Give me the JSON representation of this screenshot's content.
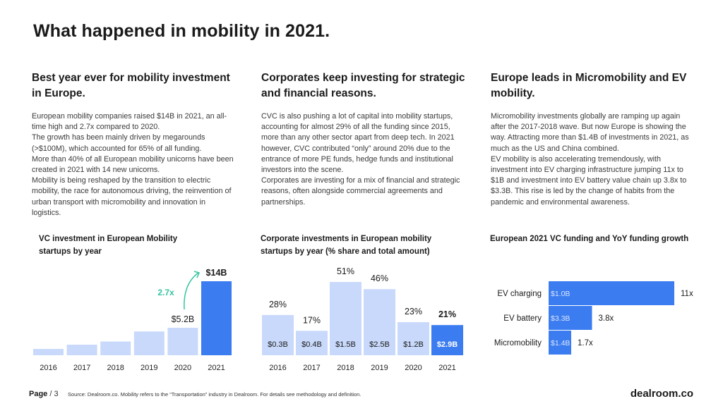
{
  "title": "What happened in mobility in 2021.",
  "columns": [
    {
      "heading": "Best year ever for mobility investment in Europe.",
      "body": [
        "European mobility companies raised $14B in 2021, an all-time high and 2.7x compared to 2020.",
        "The growth has been mainly driven by megarounds (>$100M), which accounted for 65% of all funding.",
        "More than 40% of all European mobility unicorns have been created in 2021 with 14 new unicorns.",
        "Mobility is being reshaped by the transition to electric mobility, the race for autonomous driving, the reinvention of urban transport with micromobility and innovation in logistics."
      ]
    },
    {
      "heading": "Corporates keep investing for strategic and financial reasons.",
      "body": [
        "CVC is also pushing a lot of capital into mobility startups, accounting for almost 29% of all the funding since 2015, more than any other sector apart from deep tech. In 2021 however, CVC contributed “only” around 20% due to the entrance of more PE funds, hedge funds and institutional investors into the scene.",
        "Corporates are investing for a mix of financial and strategic reasons, often alongside commercial agreements and partnerships."
      ]
    },
    {
      "heading": "Europe leads in Micromobility and EV mobility.",
      "body": [
        "Micromobility investments globally are ramping up again after the 2017-2018 wave. But now Europe is showing the way. Attracting more than $1.4B of investments in 2021, as much as the US and China combined.",
        "EV mobility is also accelerating tremendously, with investment into EV charging infrastructure jumping 11x to $1B and investment into EV battery value chain up 3.8x to $3.3B. This rise is led by the change of habits from the pandemic and environmental awareness."
      ]
    }
  ],
  "colors": {
    "light_bar": "#c9d9fb",
    "highlight_bar": "#3b7cf0",
    "growth": "#35c4a0",
    "text": "#1a1a1a"
  },
  "chart_data": [
    {
      "type": "bar",
      "title": "VC investment in European Mobility startups by year",
      "categories": [
        "2016",
        "2017",
        "2018",
        "2019",
        "2020",
        "2021"
      ],
      "values": [
        1.2,
        2.0,
        2.6,
        4.5,
        5.2,
        14.0
      ],
      "units": "$B",
      "data_labels": [
        "",
        "",
        "",
        "",
        "$5.2B",
        "$14B"
      ],
      "annotation": "2.7x",
      "highlight_index": 5,
      "ylim": [
        0,
        14
      ]
    },
    {
      "type": "bar",
      "title": "Corporate investments in European mobility startups by year (% share and total amount)",
      "categories": [
        "2016",
        "2017",
        "2018",
        "2019",
        "2020",
        "2021"
      ],
      "values": [
        28,
        17,
        51,
        46,
        23,
        21
      ],
      "units": "%",
      "share_labels": [
        "28%",
        "17%",
        "51%",
        "46%",
        "23%",
        "21%"
      ],
      "amount_labels": [
        "$0.3B",
        "$0.4B",
        "$1.5B",
        "$2.5B",
        "$1.2B",
        "$2.9B"
      ],
      "highlight_index": 5,
      "ylim": [
        0,
        51
      ]
    },
    {
      "type": "bar",
      "orientation": "horizontal",
      "title": "European 2021 VC funding and YoY funding growth",
      "categories": [
        "EV charging",
        "EV battery",
        "Micromobility"
      ],
      "values": [
        1.0,
        3.3,
        1.4
      ],
      "growth": [
        11,
        3.8,
        1.7
      ],
      "value_labels": [
        "$1.0B",
        "$3.3B",
        "$1.4B"
      ],
      "growth_labels": [
        "11x",
        "3.8x",
        "1.7x"
      ]
    }
  ],
  "footer": {
    "page_label": "Page",
    "page_number": "/ 3",
    "source": "Source: Dealroom.co. Mobility refers to the “Transportation” industry in Dealroom. For details see methodology and definition.",
    "brand": "dealroom.co"
  }
}
